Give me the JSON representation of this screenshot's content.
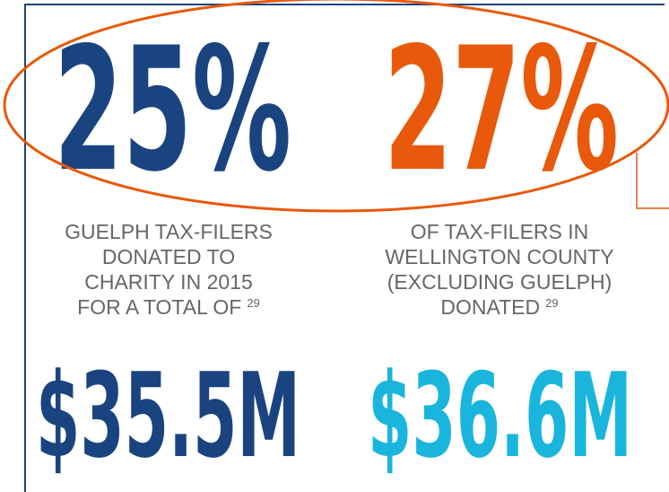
{
  "stats": [
    {
      "percent": "25%",
      "description": [
        "GUELPH TAX-FILERS",
        "DONATED TO",
        "CHARITY IN 2015",
        "FOR A TOTAL OF"
      ],
      "footnote": "29",
      "amount": "$35.5M"
    },
    {
      "percent": "27%",
      "description": [
        "OF TAX-FILERS IN",
        "WELLINGTON COUNTY",
        "(EXCLUDING GUELPH)",
        "DONATED"
      ],
      "footnote": "29",
      "amount": "$36.6M"
    }
  ]
}
